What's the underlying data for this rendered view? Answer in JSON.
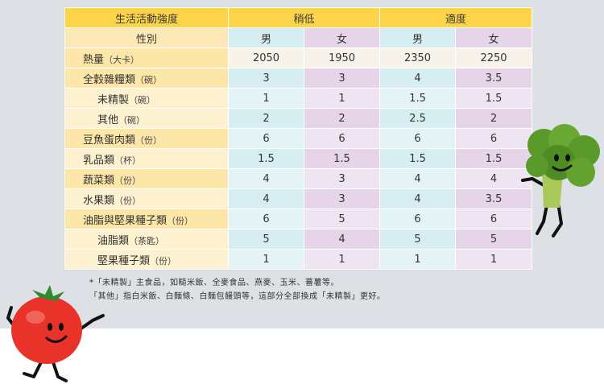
{
  "header": {
    "corner": "生活活動強度",
    "groups": [
      "稍低",
      "適度"
    ],
    "gender_label": "性別",
    "genders": [
      "男",
      "女",
      "男",
      "女"
    ]
  },
  "rows": [
    {
      "name": "熱量",
      "unit": "（大卡）",
      "values": [
        "2050",
        "1950",
        "2350",
        "2250"
      ]
    },
    {
      "name": "全穀雜糧類",
      "unit": "（碗）",
      "values": [
        "3",
        "3",
        "4",
        "3.5"
      ]
    },
    {
      "name": "未精製",
      "unit": "（碗）",
      "values": [
        "1",
        "1",
        "1.5",
        "1.5"
      ]
    },
    {
      "name": "其他",
      "unit": "（碗）",
      "values": [
        "2",
        "2",
        "2.5",
        "2"
      ]
    },
    {
      "name": "豆魚蛋肉類",
      "unit": "（份）",
      "values": [
        "6",
        "6",
        "6",
        "6"
      ]
    },
    {
      "name": "乳品類",
      "unit": "（杯）",
      "values": [
        "1.5",
        "1.5",
        "1.5",
        "1.5"
      ]
    },
    {
      "name": "蔬菜類",
      "unit": "（份）",
      "values": [
        "4",
        "3",
        "4",
        "4"
      ]
    },
    {
      "name": "水果類",
      "unit": "（份）",
      "values": [
        "4",
        "3",
        "4",
        "3.5"
      ]
    },
    {
      "name": "油脂與堅果種子類",
      "unit": "（份）",
      "values": [
        "6",
        "5",
        "6",
        "6"
      ]
    },
    {
      "name": "油脂類",
      "unit": "（茶匙）",
      "values": [
        "5",
        "4",
        "5",
        "5"
      ]
    },
    {
      "name": "堅果種子類",
      "unit": "（份）",
      "values": [
        "1",
        "1",
        "1",
        "1"
      ]
    }
  ],
  "footnote": {
    "line1": "*「未精製」主食品，如糙米飯、全麥食品、燕麥、玉米、蕃薯等。",
    "line2": "「其他」指白米飯、白麵條、白麵包饅頭等，這部分全部換成「未精製」更好。"
  },
  "colors": {
    "header_yellow": "#fcd44a",
    "teal": "#d6eef1",
    "purple": "#e6d5e8",
    "tomato_red": "#e8322a",
    "broccoli_green": "#5a9a2a"
  }
}
